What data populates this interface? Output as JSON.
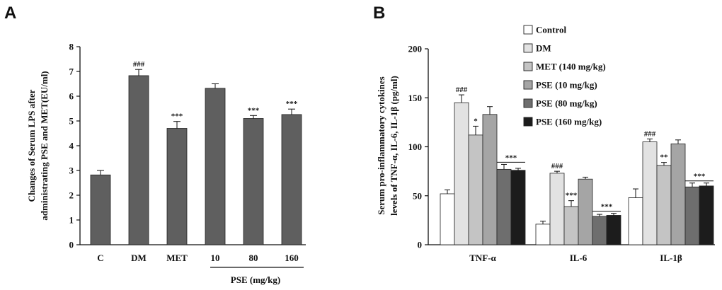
{
  "panels": {
    "a": {
      "letter": "A"
    },
    "b": {
      "letter": "B"
    }
  },
  "chart_data": [
    {
      "type": "bar",
      "panel": "A",
      "ylabel_lines": [
        "Changes of Serum LPS after",
        "administrating PSE and MET(EU/ml)"
      ],
      "ylim": [
        0,
        8
      ],
      "yticks": [
        0,
        1,
        2,
        3,
        4,
        5,
        6,
        7,
        8
      ],
      "yticklabels": [
        "0",
        "1",
        "2",
        "3",
        "4",
        "5",
        "6",
        "7",
        "8"
      ],
      "categories": [
        "C",
        "DM",
        "MET",
        "10",
        "80",
        "160"
      ],
      "values": [
        2.82,
        6.83,
        4.7,
        6.32,
        5.1,
        5.26
      ],
      "errors": [
        0.18,
        0.25,
        0.28,
        0.18,
        0.12,
        0.22
      ],
      "significance": [
        "",
        "###",
        "***",
        "",
        "***",
        "***"
      ],
      "group_label": "PSE (mg/kg)",
      "bar_color": "#5f5f5f"
    },
    {
      "type": "bar",
      "panel": "B",
      "ylabel_lines": [
        "Serum pro-inflammatory cytokines",
        "levels of TNF-α, IL-6, IL-1β (pg/ml)"
      ],
      "ylim": [
        0,
        200
      ],
      "yticks": [
        0,
        50,
        100,
        150,
        200
      ],
      "yticklabels": [
        "0",
        "50",
        "100",
        "150",
        "200"
      ],
      "categories": [
        "TNF-α",
        "IL-6",
        "IL-1β"
      ],
      "series": [
        {
          "name": "Control",
          "color": "#ffffff",
          "values": [
            52,
            21,
            48
          ],
          "errors": [
            4,
            3,
            9
          ],
          "significance": [
            "",
            "",
            ""
          ]
        },
        {
          "name": "DM",
          "color": "#e2e2e2",
          "values": [
            145,
            73,
            105
          ],
          "errors": [
            8,
            2,
            3
          ],
          "significance": [
            "###",
            "###",
            "###"
          ]
        },
        {
          "name": "MET (140 mg/kg)",
          "color": "#c4c4c4",
          "values": [
            112,
            39,
            81
          ],
          "errors": [
            9,
            6,
            3
          ],
          "significance": [
            "*",
            "***",
            "**"
          ]
        },
        {
          "name": "PSE (10 mg/kg)",
          "color": "#a5a5a5",
          "values": [
            133,
            67,
            103
          ],
          "errors": [
            8,
            2,
            4
          ],
          "significance": [
            "",
            "",
            ""
          ]
        },
        {
          "name": "PSE (80 mg/kg)",
          "color": "#6e6e6e",
          "values": [
            77,
            29,
            59
          ],
          "errors": [
            5,
            2,
            4
          ],
          "significance": [
            "***",
            "***",
            "***"
          ]
        },
        {
          "name": "PSE (160 mg/kg)",
          "color": "#1c1c1c",
          "values": [
            76,
            30,
            60
          ],
          "errors": [
            2,
            2,
            3
          ],
          "significance": [
            "",
            "",
            ""
          ]
        }
      ]
    }
  ]
}
